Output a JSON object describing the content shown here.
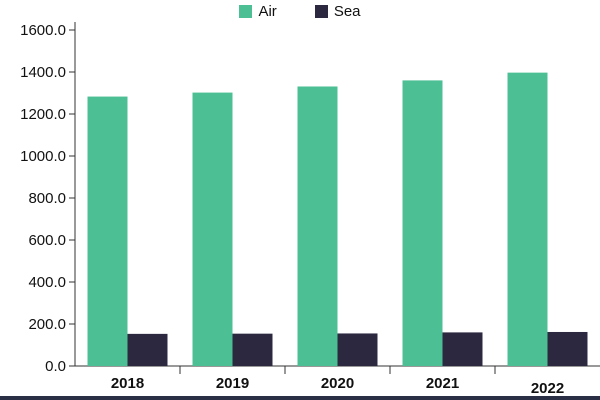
{
  "chart_data": {
    "type": "bar",
    "categories": [
      "2018",
      "2019",
      "2020",
      "2021",
      "2022"
    ],
    "series": [
      {
        "name": "Air",
        "color": "#4dbf94",
        "values": [
          1283,
          1302,
          1331,
          1360,
          1397
        ]
      },
      {
        "name": "Sea",
        "color": "#2b2840",
        "values": [
          153,
          154,
          155,
          160,
          162
        ]
      }
    ],
    "y_ticks": [
      "0.0",
      "200.0",
      "400.0",
      "600.0",
      "800.0",
      "1000.0",
      "1200.0",
      "1400.0",
      "1600.0"
    ],
    "ylim": [
      0,
      1600
    ],
    "legend_position": "top-center",
    "grid": false
  }
}
